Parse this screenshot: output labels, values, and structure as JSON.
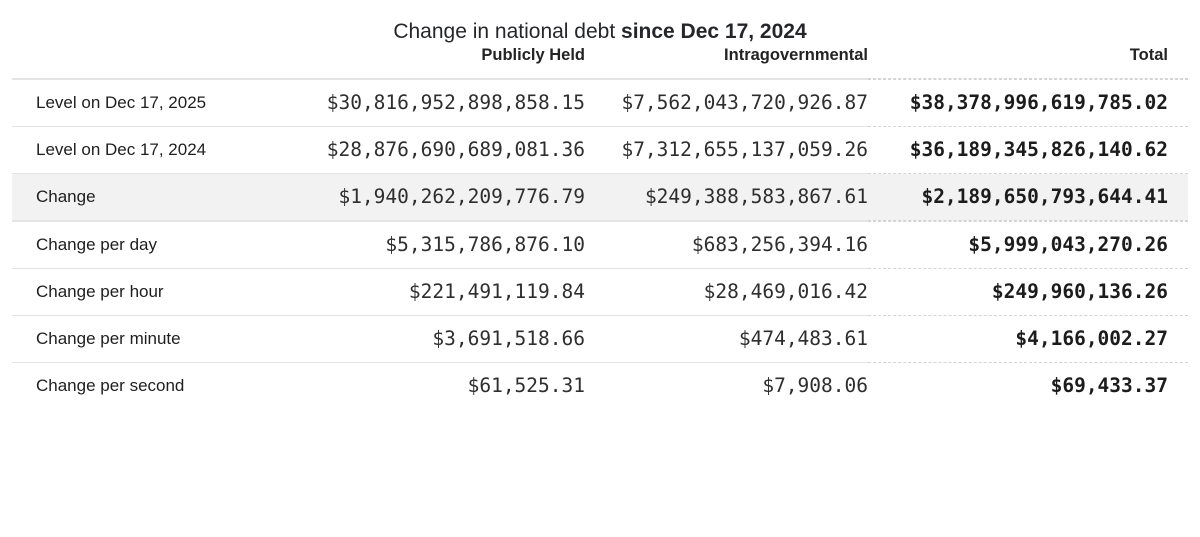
{
  "title": {
    "normal": "Change in national debt ",
    "bold": "since Dec 17, 2024"
  },
  "colors": {
    "highlight_row_bg": "#f2f2f2",
    "border": "#e4e4e4",
    "text": "#222222"
  },
  "chart_data": {
    "type": "table",
    "title": "Change in national debt since Dec 17, 2024",
    "columns": [
      "",
      "Publicly Held",
      "Intragovernmental",
      "Total"
    ],
    "sections": [
      {
        "rows": [
          {
            "cells": [
              "Level on Dec 17, 2025",
              "$30,816,952,898,858.15",
              "$7,562,043,720,926.87",
              "$38,378,996,619,785.02"
            ],
            "highlighted": false
          },
          {
            "cells": [
              "Level on Dec 17, 2024",
              "$28,876,690,689,081.36",
              "$7,312,655,137,059.26",
              "$36,189,345,826,140.62"
            ],
            "highlighted": false
          },
          {
            "cells": [
              "Change",
              "$1,940,262,209,776.79",
              "$249,388,583,867.61",
              "$2,189,650,793,644.41"
            ],
            "highlighted": true
          }
        ]
      },
      {
        "rows": [
          {
            "cells": [
              "Change per day",
              "$5,315,786,876.10",
              "$683,256,394.16",
              "$5,999,043,270.26"
            ],
            "highlighted": false
          },
          {
            "cells": [
              "Change per hour",
              "$221,491,119.84",
              "$28,469,016.42",
              "$249,960,136.26"
            ],
            "highlighted": false
          },
          {
            "cells": [
              "Change per minute",
              "$3,691,518.66",
              "$474,483.61",
              "$4,166,002.27"
            ],
            "highlighted": false
          },
          {
            "cells": [
              "Change per second",
              "$61,525.31",
              "$7,908.06",
              "$69,433.37"
            ],
            "highlighted": false
          }
        ]
      }
    ]
  }
}
